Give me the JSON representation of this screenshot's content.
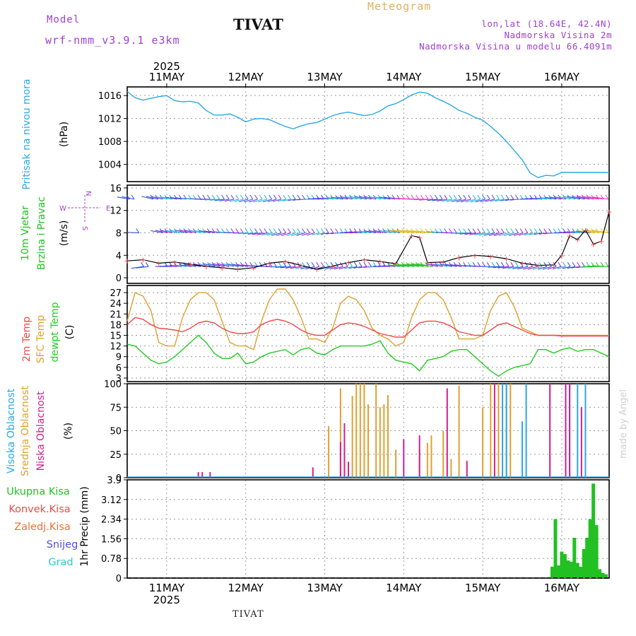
{
  "header": {
    "model_label": "Model",
    "model_run": "wrf-nmm_v3.9.1  e3km",
    "city": "TIVAT",
    "meteogram": "Meteogram",
    "lonlat": "lon,lat (18.64E, 42.4N)",
    "altitude": "Nadmorska Visina 2m",
    "model_altitude": "Nadmorska Visina u modelu 66.4091m"
  },
  "footer_city": "TIVAT",
  "watermark": "made by Angel",
  "colors": {
    "pressure": "#2aa8e8",
    "wind_green": "#22c022",
    "temp2m": "#f04848",
    "sfc": "#e0a030",
    "dewpt": "#22cc22",
    "high_cloud": "#2aa8e8",
    "mid_cloud": "#e0a030",
    "low_cloud": "#d0208c",
    "precip": "#22c022",
    "conv": "#f04848",
    "frozen": "#f07030",
    "snow": "#5050e0",
    "graupel": "#30c8c8",
    "violet": "#a040d0"
  },
  "chart_data": [
    {
      "type": "line",
      "panel": "pressure",
      "ylabels": [
        "Pritisak na nivou mora",
        "(hPa)"
      ],
      "yticks": [
        1004,
        1008,
        1012,
        1016
      ],
      "ylim": [
        1001,
        1017.5
      ],
      "x_day_labels": [
        "11MAY",
        "12MAY",
        "13MAY",
        "14MAY",
        "15MAY",
        "16MAY"
      ],
      "year": "2025",
      "xlim_days": [
        -0.5,
        5.6
      ],
      "series": [
        {
          "name": "Pritisak",
          "x": [
            -0.5,
            -0.4,
            -0.3,
            -0.2,
            -0.1,
            0.0,
            0.1,
            0.2,
            0.3,
            0.4,
            0.5,
            0.6,
            0.7,
            0.8,
            0.9,
            1.0,
            1.1,
            1.2,
            1.3,
            1.4,
            1.5,
            1.6,
            1.7,
            1.8,
            1.9,
            2.0,
            2.1,
            2.2,
            2.3,
            2.4,
            2.5,
            2.6,
            2.7,
            2.8,
            2.9,
            3.0,
            3.1,
            3.2,
            3.3,
            3.4,
            3.5,
            3.6,
            3.7,
            3.8,
            3.9,
            4.0,
            4.1,
            4.2,
            4.3,
            4.4,
            4.5,
            4.6,
            4.7,
            4.8,
            4.9,
            5.0,
            5.1,
            5.2,
            5.3,
            5.4,
            5.5,
            5.6
          ],
          "values": [
            1016.7,
            1015.6,
            1015.2,
            1015.5,
            1015.8,
            1016.0,
            1015.1,
            1014.9,
            1015.0,
            1014.7,
            1013.4,
            1012.6,
            1012.6,
            1012.8,
            1012.2,
            1011.4,
            1011.9,
            1012.0,
            1011.8,
            1011.2,
            1010.6,
            1010.2,
            1010.7,
            1011.1,
            1011.3,
            1011.9,
            1012.5,
            1012.9,
            1013.1,
            1012.8,
            1012.5,
            1012.7,
            1013.3,
            1014.2,
            1014.6,
            1015.3,
            1016.1,
            1016.6,
            1016.4,
            1015.6,
            1015.0,
            1014.3,
            1013.4,
            1012.9,
            1012.2,
            1011.7,
            1010.6,
            1009.4,
            1008.0,
            1006.4,
            1004.8,
            1002.5,
            1001.7,
            1002.1,
            1002.0,
            1002.6,
            1002.6,
            1002.6,
            1002.6,
            1002.6,
            1002.6,
            1002.6
          ]
        }
      ]
    },
    {
      "type": "line",
      "panel": "wind",
      "ylabels": [
        "10m Vjetar",
        "Brzina i Pravac",
        "(m/s)"
      ],
      "compass": [
        "N",
        "S",
        "W",
        "E"
      ],
      "yticks": [
        0,
        4,
        8,
        12,
        16
      ],
      "ylim": [
        -1,
        16.5
      ],
      "barb_levels": [
        2,
        8,
        14
      ],
      "series": [
        {
          "name": "Brzina",
          "x": [
            -0.5,
            -0.3,
            -0.1,
            0.1,
            0.3,
            0.5,
            0.7,
            0.9,
            1.1,
            1.3,
            1.5,
            1.7,
            1.9,
            2.1,
            2.3,
            2.5,
            2.7,
            2.9,
            3.1,
            3.2,
            3.3,
            3.5,
            3.7,
            3.9,
            4.1,
            4.3,
            4.5,
            4.7,
            4.9,
            5.0,
            5.1,
            5.2,
            5.3,
            5.4,
            5.5,
            5.6
          ],
          "values": [
            3.0,
            3.2,
            2.6,
            2.8,
            2.4,
            2.0,
            1.8,
            1.5,
            1.8,
            2.6,
            2.9,
            2.2,
            1.5,
            2.1,
            2.7,
            3.2,
            2.9,
            2.5,
            7.5,
            7.2,
            2.7,
            2.8,
            3.6,
            4.0,
            3.8,
            3.4,
            2.6,
            2.2,
            2.3,
            4.0,
            7.5,
            6.8,
            8.5,
            6.0,
            6.5,
            11.8
          ]
        }
      ]
    },
    {
      "type": "line",
      "panel": "temperature",
      "ylabels": [
        "2m Temp",
        "SFC Temp",
        "dewpt Temp",
        "(C)"
      ],
      "yticks": [
        3,
        6,
        9,
        12,
        15,
        18,
        21,
        24,
        27
      ],
      "ylim": [
        2,
        29
      ],
      "series": [
        {
          "name": "SFC Temp",
          "x": [
            -0.5,
            -0.4,
            -0.3,
            -0.2,
            -0.1,
            0.0,
            0.1,
            0.2,
            0.3,
            0.4,
            0.5,
            0.6,
            0.7,
            0.8,
            0.9,
            1.0,
            1.1,
            1.2,
            1.3,
            1.4,
            1.5,
            1.6,
            1.7,
            1.8,
            1.9,
            2.0,
            2.1,
            2.2,
            2.3,
            2.4,
            2.5,
            2.6,
            2.7,
            2.8,
            2.9,
            3.0,
            3.1,
            3.2,
            3.3,
            3.4,
            3.5,
            3.6,
            3.7,
            3.8,
            3.9,
            4.0,
            4.1,
            4.2,
            4.3,
            4.4,
            4.5,
            4.6,
            4.7,
            4.8,
            4.9,
            5.0,
            5.1,
            5.2,
            5.3,
            5.4,
            5.5,
            5.6
          ],
          "values": [
            19,
            27,
            26,
            22,
            13,
            12,
            12,
            20,
            25,
            27,
            27,
            25,
            19,
            13,
            12,
            12,
            11,
            19,
            25,
            28,
            28,
            25,
            20,
            14,
            14,
            13,
            17,
            24,
            26,
            25,
            22,
            17,
            15,
            14,
            12,
            13,
            20,
            25,
            27,
            27,
            25,
            20,
            14,
            14,
            14,
            15,
            22,
            26,
            27,
            23,
            17,
            16,
            15,
            15,
            15,
            15,
            15,
            15,
            15,
            15,
            15,
            15
          ]
        },
        {
          "name": "2m Temp",
          "x": [
            -0.5,
            -0.4,
            -0.3,
            -0.2,
            -0.1,
            0.0,
            0.1,
            0.2,
            0.3,
            0.4,
            0.5,
            0.6,
            0.7,
            0.8,
            0.9,
            1.0,
            1.1,
            1.2,
            1.3,
            1.4,
            1.5,
            1.6,
            1.7,
            1.8,
            1.9,
            2.0,
            2.1,
            2.2,
            2.3,
            2.4,
            2.5,
            2.6,
            2.7,
            2.8,
            2.9,
            3.0,
            3.1,
            3.2,
            3.3,
            3.4,
            3.5,
            3.6,
            3.7,
            3.8,
            3.9,
            4.0,
            4.1,
            4.2,
            4.3,
            4.4,
            4.5,
            4.6,
            4.7,
            4.8,
            4.9,
            5.0,
            5.1,
            5.2,
            5.3,
            5.4,
            5.5,
            5.6
          ],
          "values": [
            18,
            20,
            19.5,
            18,
            17,
            16.8,
            16.5,
            16,
            17,
            18.5,
            19,
            18.5,
            17,
            16,
            15.5,
            15.5,
            16,
            18,
            19,
            19.5,
            19,
            18,
            16.5,
            15.5,
            15,
            15,
            16.5,
            18,
            18.5,
            18.2,
            17.5,
            16.5,
            15.5,
            15,
            14.5,
            14.5,
            16.5,
            18.5,
            19,
            19,
            18.5,
            17.5,
            16,
            15.5,
            15,
            15,
            16.5,
            18,
            18.5,
            17.5,
            16.5,
            15.5,
            15,
            15,
            15,
            14.8,
            14.8,
            14.8,
            14.8,
            14.8,
            14.8,
            14.8
          ]
        },
        {
          "name": "dewpt Temp",
          "x": [
            -0.5,
            -0.4,
            -0.3,
            -0.2,
            -0.1,
            0.0,
            0.1,
            0.2,
            0.3,
            0.4,
            0.5,
            0.6,
            0.7,
            0.8,
            0.9,
            1.0,
            1.1,
            1.2,
            1.3,
            1.4,
            1.5,
            1.6,
            1.7,
            1.8,
            1.9,
            2.0,
            2.1,
            2.2,
            2.3,
            2.4,
            2.5,
            2.6,
            2.7,
            2.8,
            2.9,
            3.0,
            3.1,
            3.2,
            3.3,
            3.4,
            3.5,
            3.6,
            3.7,
            3.8,
            3.9,
            4.0,
            4.1,
            4.2,
            4.3,
            4.4,
            4.5,
            4.6,
            4.7,
            4.8,
            4.9,
            5.0,
            5.1,
            5.2,
            5.3,
            5.4,
            5.5,
            5.6
          ],
          "values": [
            12.5,
            12,
            10,
            8,
            7,
            7.5,
            9,
            11,
            13,
            15,
            13,
            10,
            8.5,
            8.5,
            10,
            7,
            7.5,
            9,
            10,
            10.5,
            11,
            9.5,
            11,
            11.5,
            10,
            9.5,
            11,
            12,
            12,
            12,
            12,
            12.5,
            13.5,
            10,
            8,
            7.5,
            7,
            5,
            8,
            8.5,
            9,
            10.5,
            11,
            11,
            9,
            7,
            5,
            3.5,
            5,
            6,
            6.5,
            7,
            11,
            11,
            10,
            11,
            11.5,
            10.5,
            11,
            11,
            10,
            9
          ]
        }
      ]
    },
    {
      "type": "bar",
      "panel": "clouds",
      "ylabels": [
        "Visoka Oblacnost",
        "Srednja Oblacnost",
        "Niska Oblacnost",
        "(%)"
      ],
      "yticks": [
        0,
        25,
        50,
        75,
        100
      ],
      "ylim": [
        0,
        100
      ],
      "series": [
        {
          "name": "Srednja Oblacnost",
          "x": [
            2.0,
            2.05,
            2.2,
            2.35,
            2.4,
            2.45,
            2.5,
            2.55,
            2.65,
            2.7,
            2.75,
            2.8,
            2.9,
            3.2,
            3.3,
            3.35,
            3.5,
            3.6,
            3.7,
            4.0,
            4.1,
            4.2,
            4.3,
            4.35
          ],
          "values": [
            2,
            55,
            95,
            87,
            100,
            100,
            100,
            78,
            100,
            75,
            78,
            88,
            30,
            30,
            37,
            45,
            50,
            20,
            98,
            75,
            100,
            100,
            100,
            100
          ]
        },
        {
          "name": "Visoka Oblacnost",
          "x": [
            4.25,
            4.3,
            4.5,
            4.55,
            5.1,
            5.2,
            5.3
          ],
          "values": [
            100,
            100,
            60,
            100,
            100,
            100,
            100
          ]
        },
        {
          "name": "Niska Oblacnost",
          "x": [
            0.4,
            0.45,
            0.55,
            1.85,
            2.2,
            2.25,
            2.3,
            3.0,
            3.2,
            3.55,
            3.8,
            4.15,
            4.85,
            5.05,
            5.1,
            5.25
          ],
          "values": [
            6,
            6,
            6,
            11,
            38,
            58,
            17,
            41,
            45,
            95,
            18,
            100,
            100,
            100,
            100,
            75
          ]
        }
      ]
    },
    {
      "type": "bar",
      "panel": "precip",
      "ylabels": [
        "Ukupna Kisa",
        "Konvek.Kisa",
        "Zaledj.Kisa",
        "Snijeg",
        "Grad",
        "1hr Precip (mm)"
      ],
      "yticks": [
        "0",
        "0.78",
        "1.56",
        "2.34",
        "3.12",
        "3.9"
      ],
      "ylim": [
        0,
        3.9
      ],
      "series": [
        {
          "name": "Ukupna Kisa",
          "x": [
            4.88,
            4.92,
            4.96,
            5.0,
            5.04,
            5.08,
            5.12,
            5.16,
            5.2,
            5.24,
            5.28,
            5.32,
            5.36,
            5.4,
            5.44,
            5.48,
            5.52,
            5.56
          ],
          "values": [
            0.45,
            2.34,
            0.5,
            1.05,
            0.95,
            0.7,
            0.65,
            1.6,
            0.6,
            0.45,
            1.15,
            1.6,
            2.34,
            3.75,
            2.1,
            0.35,
            0.2,
            0.15
          ]
        }
      ]
    }
  ]
}
